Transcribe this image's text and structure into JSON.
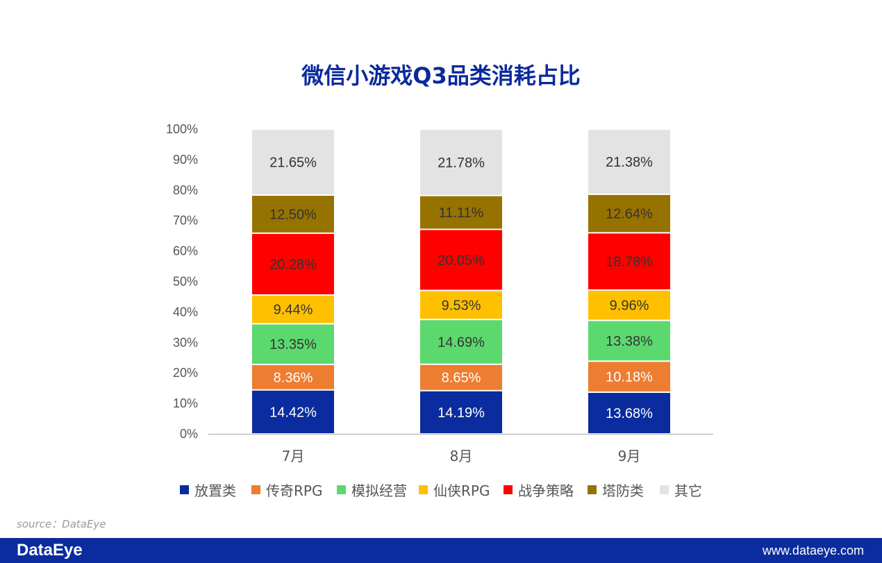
{
  "chart_data": {
    "type": "bar",
    "stacked": true,
    "title": "微信小游戏Q3品类消耗占比",
    "categories": [
      "7月",
      "8月",
      "9月"
    ],
    "ylim": [
      0,
      100
    ],
    "yticks": [
      "0%",
      "10%",
      "20%",
      "30%",
      "40%",
      "50%",
      "60%",
      "70%",
      "80%",
      "90%",
      "100%"
    ],
    "legend_position": "bottom",
    "series": [
      {
        "name": "放置类",
        "color": "#0a2c9e",
        "label_color": "#ffffff",
        "values": [
          14.42,
          14.19,
          13.68
        ],
        "labels": [
          "14.42%",
          "14.19%",
          "13.68%"
        ]
      },
      {
        "name": "传奇RPG",
        "color": "#ed7d31",
        "label_color": "#ffffff",
        "values": [
          8.36,
          8.65,
          10.18
        ],
        "labels": [
          "8.36%",
          "8.65%",
          "10.18%"
        ]
      },
      {
        "name": "模拟经营",
        "color": "#5bd96e",
        "label_color": "#333333",
        "values": [
          13.35,
          14.69,
          13.38
        ],
        "labels": [
          "13.35%",
          "14.69%",
          "13.38%"
        ]
      },
      {
        "name": "仙侠RPG",
        "color": "#ffc000",
        "label_color": "#333333",
        "values": [
          9.44,
          9.53,
          9.96
        ],
        "labels": [
          "9.44%",
          "9.53%",
          "9.96%"
        ]
      },
      {
        "name": "战争策略",
        "color": "#ff0000",
        "label_color": "#333333",
        "values": [
          20.28,
          20.05,
          18.78
        ],
        "labels": [
          "20.28%",
          "20.05%",
          "18.78%"
        ]
      },
      {
        "name": "塔防类",
        "color": "#967200",
        "label_color": "#333333",
        "values": [
          12.5,
          11.11,
          12.64
        ],
        "labels": [
          "12.50%",
          "11.11%",
          "12.64%"
        ]
      },
      {
        "name": "其它",
        "color": "#e3e3e3",
        "label_color": "#333333",
        "values": [
          21.65,
          21.78,
          21.38
        ],
        "labels": [
          "21.65%",
          "21.78%",
          "21.38%"
        ]
      }
    ]
  },
  "watermark": "DataEye",
  "source": "source：DataEye",
  "footer": {
    "logo": "DataEye",
    "url": "www.dataeye.com"
  }
}
